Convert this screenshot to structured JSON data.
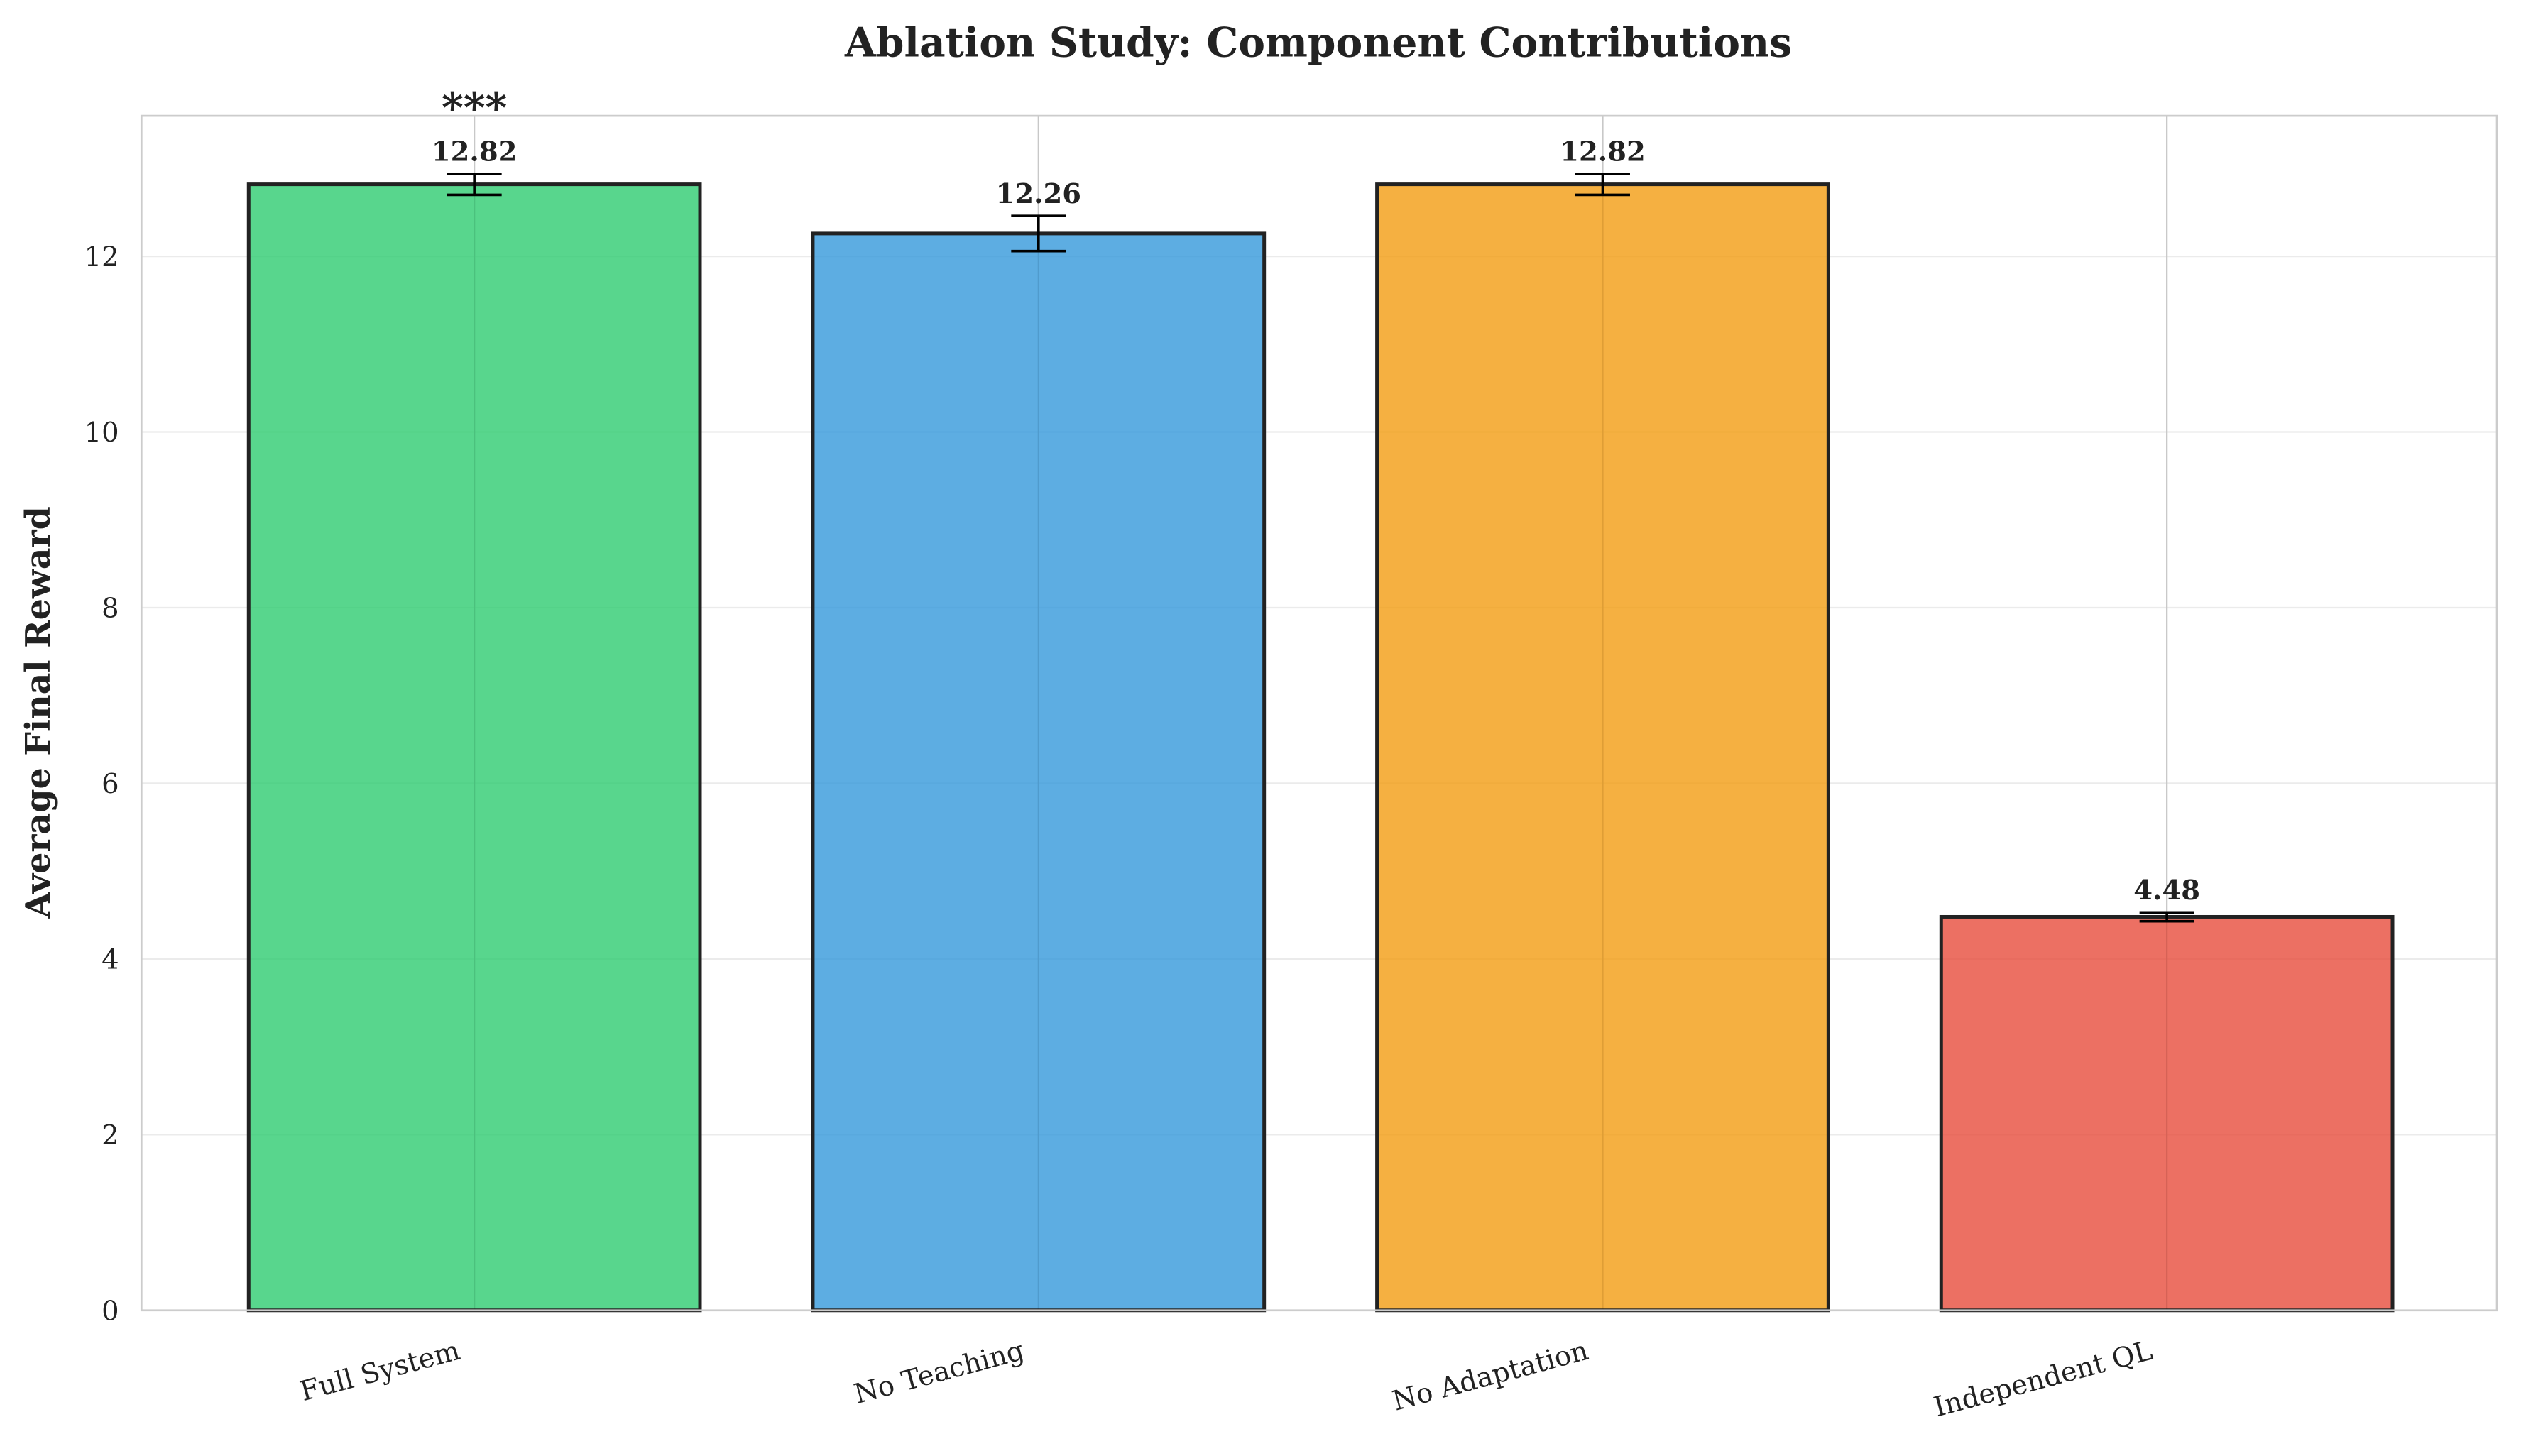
{
  "chart_data": {
    "type": "bar",
    "title": "Ablation Study: Component Contributions",
    "xlabel": "",
    "ylabel": "Average Final Reward",
    "categories": [
      "Full System",
      "No Teaching",
      "No Adaptation",
      "Independent QL"
    ],
    "values": [
      12.82,
      12.26,
      12.82,
      4.48
    ],
    "value_labels": [
      "12.82",
      "12.26",
      "12.82",
      "4.48"
    ],
    "errors": [
      0.12,
      0.2,
      0.12,
      0.05
    ],
    "colors": [
      "#2ecc71",
      "#3498db",
      "#f39c12",
      "#e74c3c"
    ],
    "annotations": [
      {
        "category": "Full System",
        "text": "***"
      }
    ],
    "ylim": [
      0,
      13.6
    ],
    "xlim": [
      -0.59,
      3.585
    ],
    "yticks": [
      0,
      2,
      4,
      6,
      8,
      10,
      12
    ],
    "grid": true,
    "legend": "none"
  }
}
